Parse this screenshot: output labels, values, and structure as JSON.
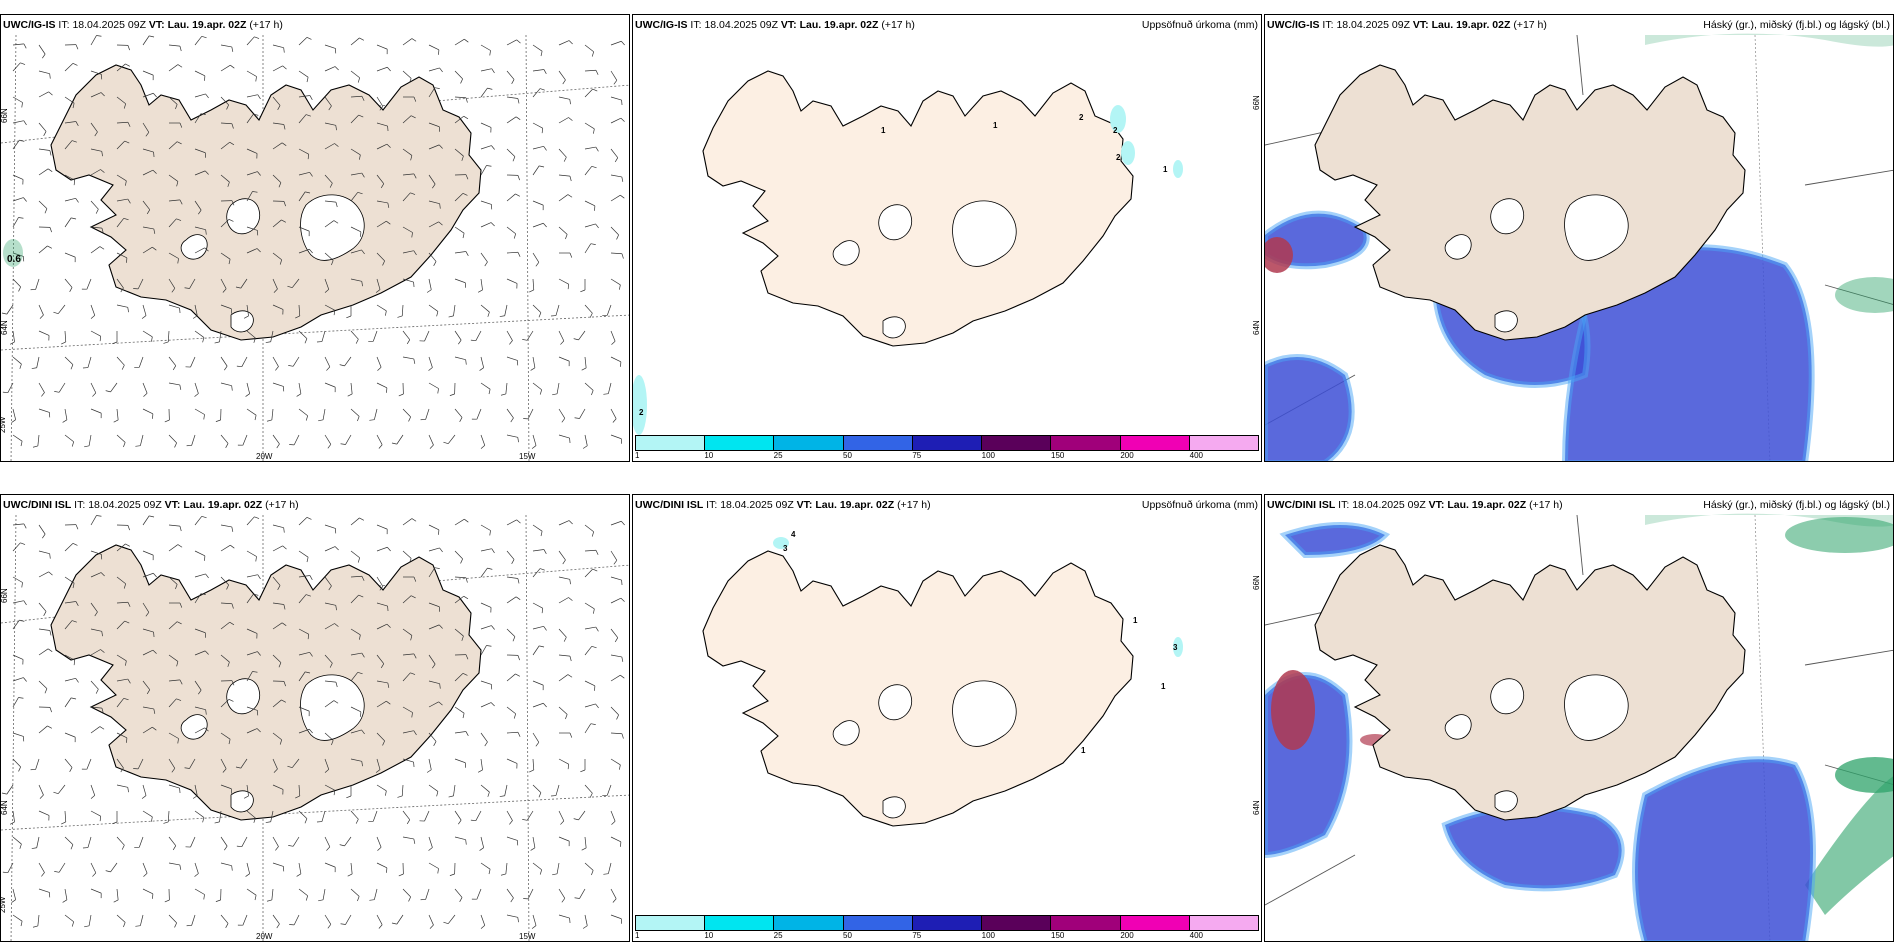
{
  "panels": [
    {
      "id": "tl",
      "model": "UWC/IG-IS",
      "it_label": "IT:",
      "it_value": "18.04.2025 09Z",
      "vt_label": "VT:",
      "vt_value": "Lau. 19.apr. 02Z",
      "lead": "(+17 h)",
      "right_title": ""
    },
    {
      "id": "tm",
      "model": "UWC/IG-IS",
      "it_label": "IT:",
      "it_value": "18.04.2025 09Z",
      "vt_label": "VT:",
      "vt_value": "Lau. 19.apr. 02Z",
      "lead": "(+17 h)",
      "right_title": "Uppsöfnuð úrkoma (mm)"
    },
    {
      "id": "tr",
      "model": "UWC/IG-IS",
      "it_label": "IT:",
      "it_value": "18.04.2025 09Z",
      "vt_label": "VT:",
      "vt_value": "Lau. 19.apr. 02Z",
      "lead": "(+17 h)",
      "right_title": "Háský (gr.), miðský (fj.bl.) og lágský (bl.)"
    },
    {
      "id": "bl",
      "model": "UWC/DINI ISL",
      "it_label": "IT:",
      "it_value": "18.04.2025 09Z",
      "vt_label": "VT:",
      "vt_value": "Lau. 19.apr. 02Z",
      "lead": "(+17 h)",
      "right_title": ""
    },
    {
      "id": "bm",
      "model": "UWC/DINI ISL",
      "it_label": "IT:",
      "it_value": "18.04.2025 09Z",
      "vt_label": "VT:",
      "vt_value": "Lau. 19.apr. 02Z",
      "lead": "(+17 h)",
      "right_title": "Uppsöfnuð úrkoma (mm)"
    },
    {
      "id": "br",
      "model": "UWC/DINI ISL",
      "it_label": "IT:",
      "it_value": "18.04.2025 09Z",
      "vt_label": "VT:",
      "vt_value": "Lau. 19.apr. 02Z",
      "lead": "(+17 h)",
      "right_title": "Háský (gr.), miðský (fj.bl.) og lágský (bl.)"
    }
  ],
  "grid_labels": {
    "lat66": "66N",
    "lat64": "64N",
    "lat66_right": "66N",
    "lat64_right": "64N",
    "lon25": "25W",
    "lon20": "20W",
    "lon15": "15W"
  },
  "wind_value": "0.6",
  "precip_scale": {
    "ticks": [
      "1",
      "10",
      "25",
      "50",
      "75",
      "100",
      "150",
      "200",
      "400"
    ],
    "colors": [
      "#b3f5f5",
      "#00e5f0",
      "#00b4e6",
      "#3264e6",
      "#1e1eb4",
      "#5a005a",
      "#a0007a",
      "#f000b4",
      "#f5aaf0"
    ]
  },
  "precip_labels_top": [
    "1",
    "1",
    "2",
    "2",
    "2",
    "1",
    "2"
  ],
  "precip_labels_bottom": [
    "4",
    "3",
    "1",
    "3",
    "1",
    "1"
  ],
  "colors": {
    "land": "#ede0d3",
    "land_light": "#fcefe3",
    "glacier": "#ffffff",
    "high_cloud": "#2ea36a",
    "mid_cloud": "#3d4fd6",
    "low_cloud": "#4aa5f5",
    "convective": "#b03a50"
  }
}
